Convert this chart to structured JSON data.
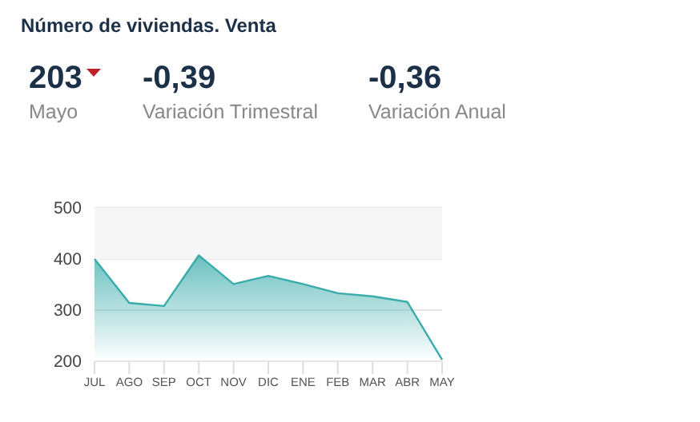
{
  "chart_data": {
    "type": "area",
    "title": "Número de viviendas. Venta",
    "annotations": [
      "203",
      "Mayo",
      "-0,39",
      "Variación Trimestral",
      "-0,36",
      "Variación Anual"
    ],
    "categories": [
      "JUL",
      "AGO",
      "SEP",
      "OCT",
      "NOV",
      "DIC",
      "ENE",
      "FEB",
      "MAR",
      "ABR",
      "MAY"
    ],
    "series": [
      {
        "color": "#3aabab",
        "values": [
          400,
          314,
          308,
          407,
          351,
          367,
          351,
          333,
          327,
          316,
          203
        ]
      }
    ],
    "ylim": [
      200,
      500
    ],
    "yticks": [
      200,
      300,
      400,
      500
    ],
    "grid": "y",
    "bands": [
      {
        "axis": "y",
        "from": 400,
        "to": 500,
        "color": "#f6f6f6"
      }
    ]
  }
}
